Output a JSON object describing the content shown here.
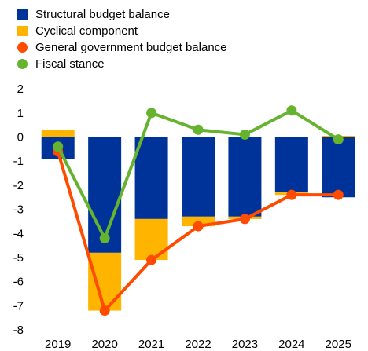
{
  "chart_data": {
    "type": "bar",
    "categories": [
      "2019",
      "2020",
      "2021",
      "2022",
      "2023",
      "2024",
      "2025"
    ],
    "stacked_bar_series": [
      {
        "name": "Structural budget balance",
        "color": "#003399",
        "values": [
          -0.9,
          -4.8,
          -3.4,
          -3.3,
          -3.3,
          -2.3,
          -2.5
        ]
      },
      {
        "name": "Cyclical component",
        "color": "#FFB400",
        "values": [
          0.3,
          -2.4,
          -1.7,
          -0.4,
          -0.1,
          -0.1,
          0.05
        ]
      }
    ],
    "line_series": [
      {
        "name": "General government budget balance",
        "color": "#FF4B00",
        "values": [
          -0.6,
          -7.2,
          -5.1,
          -3.7,
          -3.4,
          -2.4,
          -2.4
        ]
      },
      {
        "name": "Fiscal stance",
        "color": "#65B32E",
        "values": [
          -0.4,
          -4.2,
          1.0,
          0.3,
          0.1,
          1.1,
          -0.1
        ]
      }
    ],
    "legend": [
      {
        "label": "Structural budget balance",
        "color": "#003399",
        "marker": "square"
      },
      {
        "label": "Cyclical component",
        "color": "#FFB400",
        "marker": "square"
      },
      {
        "label": "General government budget balance",
        "color": "#FF4B00",
        "marker": "circle"
      },
      {
        "label": "Fiscal stance",
        "color": "#65B32E",
        "marker": "circle"
      }
    ],
    "yticks": [
      "2",
      "1",
      "0",
      "-1",
      "-2",
      "-3",
      "-4",
      "-5",
      "-6",
      "-7",
      "-8"
    ],
    "ylim": [
      -8,
      2
    ],
    "grid": false,
    "legend_position": "top-left"
  }
}
